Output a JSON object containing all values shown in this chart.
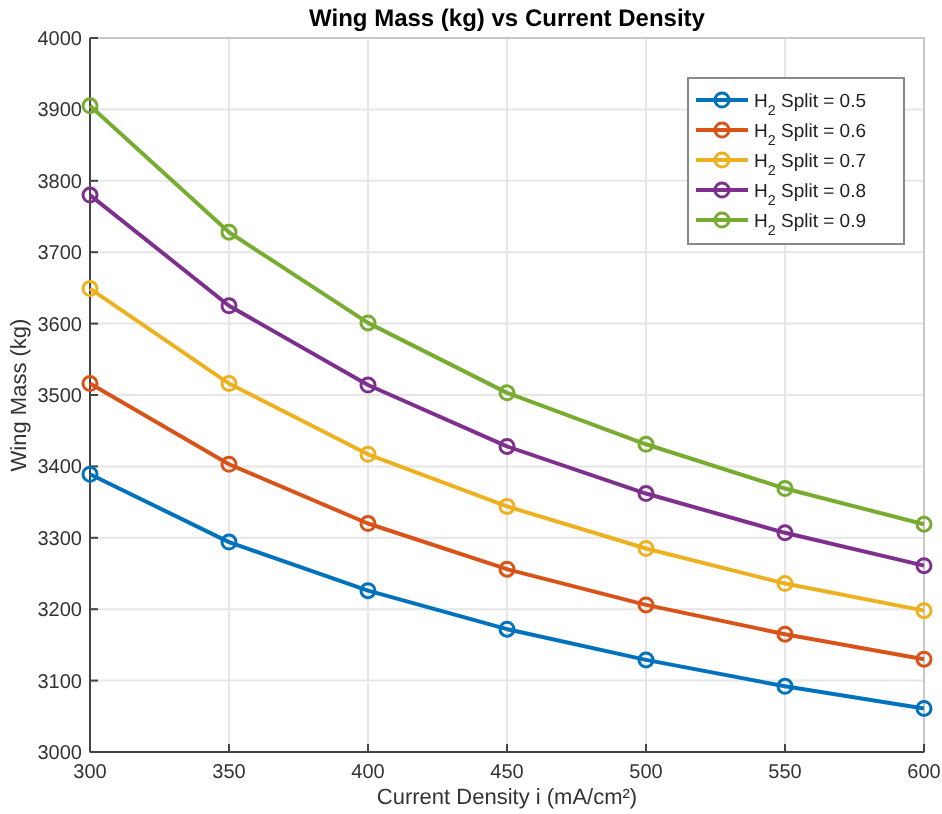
{
  "chart_data": {
    "type": "line",
    "title": "Wing Mass (kg) vs Current Density",
    "xlabel": "Current Density i (mA/cm²)",
    "ylabel": "Wing Mass (kg)",
    "x": [
      300,
      350,
      400,
      450,
      500,
      550,
      600
    ],
    "series": [
      {
        "name": "H$_{2}$ Split = 0.5",
        "color": "#0072bd",
        "values": [
          3389,
          3294,
          3226,
          3172,
          3129,
          3092,
          3061
        ]
      },
      {
        "name": "H$_{2}$ Split = 0.6",
        "color": "#d95319",
        "values": [
          3516,
          3403,
          3320,
          3256,
          3206,
          3165,
          3130
        ]
      },
      {
        "name": "H$_{2}$ Split = 0.7",
        "color": "#edb120",
        "values": [
          3649,
          3516,
          3417,
          3344,
          3285,
          3236,
          3198
        ]
      },
      {
        "name": "H$_{2}$ Split = 0.8",
        "color": "#7e2f8e",
        "values": [
          3780,
          3625,
          3514,
          3428,
          3362,
          3307,
          3261
        ]
      },
      {
        "name": "H$_{2}$ Split = 0.9",
        "color": "#77ac30",
        "values": [
          3905,
          3728,
          3601,
          3503,
          3431,
          3369,
          3319
        ]
      }
    ],
    "xlim": [
      300,
      600
    ],
    "xticks": [
      300,
      350,
      400,
      450,
      500,
      550,
      600
    ],
    "ylim": [
      3000,
      4000
    ],
    "yticks": [
      3000,
      3100,
      3200,
      3300,
      3400,
      3500,
      3600,
      3700,
      3800,
      3900,
      4000
    ],
    "grid": true,
    "legend": "top right",
    "marker": "circle",
    "line_style": "solid"
  }
}
